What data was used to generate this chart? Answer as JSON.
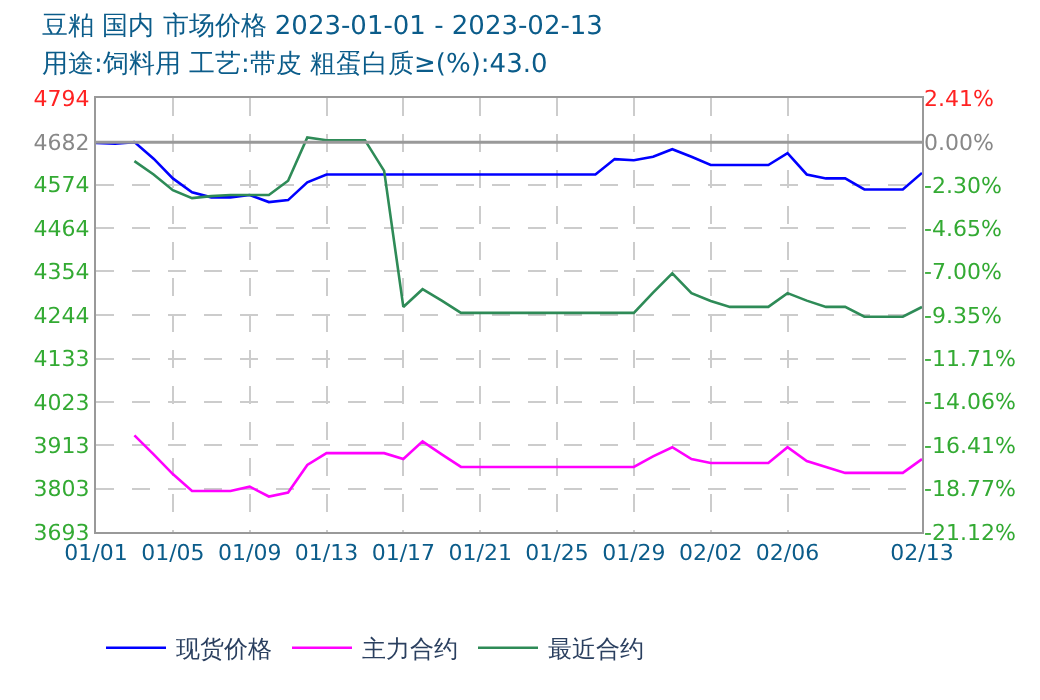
{
  "chart_data": {
    "type": "line",
    "title": "豆粕 国内 市场价格 2023-01-01 - 2023-02-13",
    "subtitle": "用途:饲料用 工艺:带皮 粗蛋白质≥(%):43.0",
    "x": [
      "2023-01-01",
      "2023-01-02",
      "2023-01-03",
      "2023-01-04",
      "2023-01-05",
      "2023-01-06",
      "2023-01-07",
      "2023-01-08",
      "2023-01-09",
      "2023-01-10",
      "2023-01-11",
      "2023-01-12",
      "2023-01-13",
      "2023-01-14",
      "2023-01-15",
      "2023-01-16",
      "2023-01-17",
      "2023-01-18",
      "2023-01-19",
      "2023-01-20",
      "2023-01-21",
      "2023-01-22",
      "2023-01-23",
      "2023-01-24",
      "2023-01-25",
      "2023-01-26",
      "2023-01-27",
      "2023-01-28",
      "2023-01-29",
      "2023-01-30",
      "2023-01-31",
      "2023-02-01",
      "2023-02-02",
      "2023-02-03",
      "2023-02-04",
      "2023-02-05",
      "2023-02-06",
      "2023-02-07",
      "2023-02-08",
      "2023-02-09",
      "2023-02-10",
      "2023-02-11",
      "2023-02-12",
      "2023-02-13"
    ],
    "series": [
      {
        "name": "现货价格",
        "color": "#0000ff",
        "values": [
          4680,
          4678,
          4682,
          4640,
          4590,
          4555,
          4542,
          4542,
          4548,
          4530,
          4535,
          4580,
          4600,
          4600,
          4600,
          4600,
          4600,
          4600,
          4600,
          4600,
          4600,
          4600,
          4600,
          4600,
          4600,
          4600,
          4600,
          4639,
          4636,
          4645,
          4664,
          4645,
          4624,
          4624,
          4624,
          4624,
          4654,
          4600,
          4590,
          4590,
          4562,
          4562,
          4562,
          4604
        ]
      },
      {
        "name": "主力合约",
        "color": "#ff00ff",
        "values": [
          null,
          null,
          3938,
          3890,
          3840,
          3797,
          3797,
          3797,
          3808,
          3783,
          3793,
          3863,
          3893,
          3893,
          3893,
          3893,
          3878,
          3923,
          3890,
          3858,
          3858,
          3858,
          3858,
          3858,
          3858,
          3858,
          3858,
          3858,
          3858,
          3885,
          3908,
          3878,
          3868,
          3868,
          3868,
          3868,
          3908,
          3873,
          3858,
          3843,
          3843,
          3843,
          3843,
          3878
        ]
      },
      {
        "name": "最近合约",
        "color": "#2e8b57",
        "values": [
          null,
          null,
          4634,
          4600,
          4560,
          4540,
          4545,
          4548,
          4548,
          4548,
          4584,
          4694,
          4687,
          4687,
          4687,
          4609,
          4264,
          4309,
          4280,
          4249,
          4249,
          4249,
          4249,
          4249,
          4249,
          4249,
          4249,
          4249,
          4249,
          4300,
          4349,
          4299,
          4279,
          4264,
          4264,
          4264,
          4299,
          4280,
          4264,
          4264,
          4239,
          4239,
          4239,
          4264
        ]
      }
    ],
    "xlim": [
      "2023-01-01",
      "2023-02-13"
    ],
    "xticks": [
      {
        "value": "2023-01-01",
        "label": "01/01"
      },
      {
        "value": "2023-01-05",
        "label": "01/05"
      },
      {
        "value": "2023-01-09",
        "label": "01/09"
      },
      {
        "value": "2023-01-13",
        "label": "01/13"
      },
      {
        "value": "2023-01-17",
        "label": "01/17"
      },
      {
        "value": "2023-01-21",
        "label": "01/21"
      },
      {
        "value": "2023-01-25",
        "label": "01/25"
      },
      {
        "value": "2023-01-29",
        "label": "01/29"
      },
      {
        "value": "2023-02-02",
        "label": "02/02"
      },
      {
        "value": "2023-02-06",
        "label": "02/06"
      },
      {
        "value": "2023-02-13",
        "label": "02/13"
      }
    ],
    "ylim": [
      3693,
      4794
    ],
    "yticks": [
      3693,
      3803,
      3913,
      4023,
      4133,
      4244,
      4354,
      4464,
      4574,
      4682,
      4794
    ],
    "y2lim": [
      -21.12,
      2.41
    ],
    "y2ticks": [
      {
        "value": -21.12,
        "label": "-21.12%"
      },
      {
        "value": -18.77,
        "label": "-18.77%"
      },
      {
        "value": -16.41,
        "label": "-16.41%"
      },
      {
        "value": -14.06,
        "label": "-14.06%"
      },
      {
        "value": -11.71,
        "label": "-11.71%"
      },
      {
        "value": -9.35,
        "label": "-9.35%"
      },
      {
        "value": -7.0,
        "label": "-7.00%"
      },
      {
        "value": -4.65,
        "label": "-4.65%"
      },
      {
        "value": -2.3,
        "label": "-2.30%"
      },
      {
        "value": 0,
        "label": "0.00%"
      },
      {
        "value": 2.41,
        "label": "2.41%"
      }
    ],
    "ref_lines": [
      {
        "axis": "y",
        "value": 4682,
        "color": "#999999",
        "line_style": "solid"
      }
    ],
    "grid": true,
    "legend": "bottom",
    "marker": "none",
    "line_style": "solid"
  }
}
